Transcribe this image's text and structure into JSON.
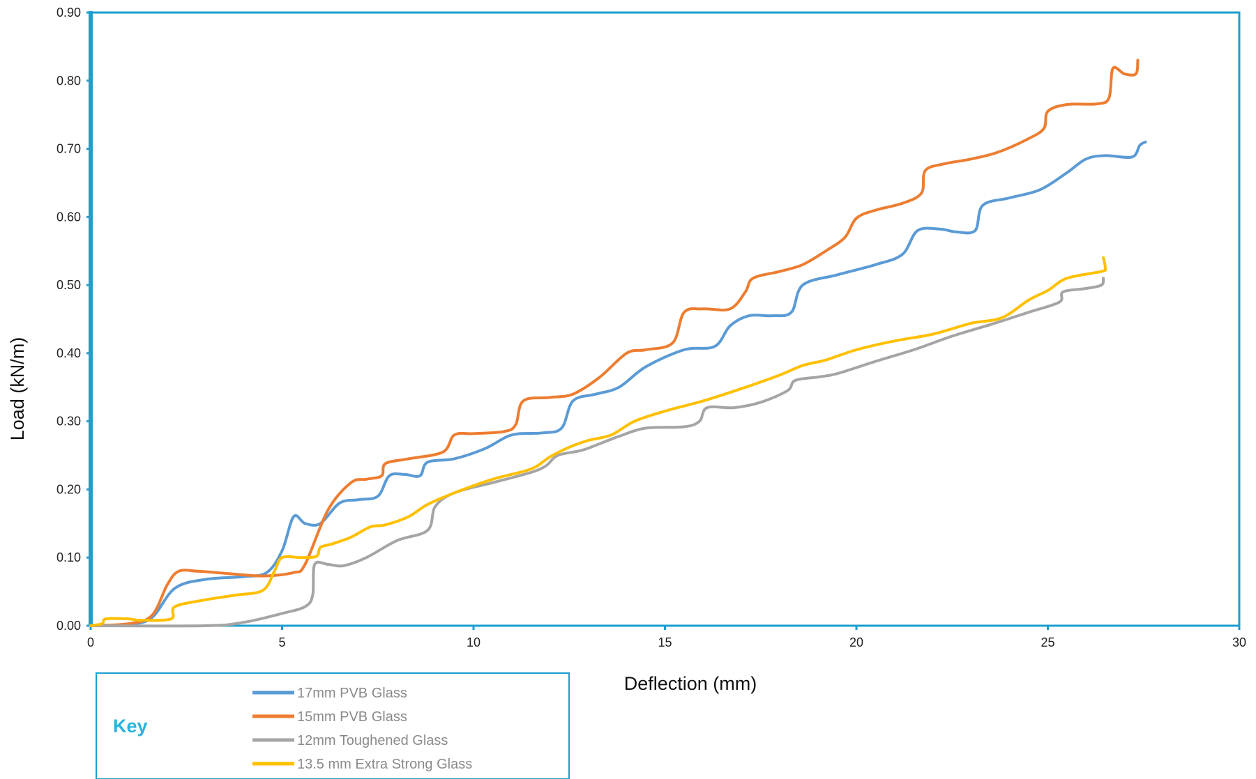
{
  "chart_data": {
    "type": "line",
    "xlabel": "Deflection (mm)",
    "ylabel": "Load (kN/m)",
    "xlim": [
      0,
      30
    ],
    "ylim": [
      0,
      0.9
    ],
    "x_ticks": [
      "0",
      "5",
      "10",
      "15",
      "20",
      "25",
      "30"
    ],
    "y_ticks": [
      "0.00",
      "0.10",
      "0.20",
      "0.30",
      "0.40",
      "0.50",
      "0.60",
      "0.70",
      "0.80",
      "0.90"
    ],
    "grid": false,
    "legend_title": "Key",
    "legend_position": "bottom-left",
    "colors": {
      "frame": "#1a9fcf",
      "legend_title": "#29b3dd"
    },
    "series": [
      {
        "name": "17mm PVB Glass",
        "color": "#5b9bd5",
        "points": [
          [
            0,
            0
          ],
          [
            1,
            0.002
          ],
          [
            1.6,
            0.012
          ],
          [
            2.2,
            0.055
          ],
          [
            3,
            0.068
          ],
          [
            4,
            0.072
          ],
          [
            4.6,
            0.078
          ],
          [
            5,
            0.11
          ],
          [
            5.3,
            0.16
          ],
          [
            5.6,
            0.15
          ],
          [
            6,
            0.15
          ],
          [
            6.5,
            0.18
          ],
          [
            7,
            0.185
          ],
          [
            7.5,
            0.19
          ],
          [
            7.8,
            0.22
          ],
          [
            8.2,
            0.222
          ],
          [
            8.6,
            0.22
          ],
          [
            8.8,
            0.24
          ],
          [
            9.5,
            0.245
          ],
          [
            10.3,
            0.26
          ],
          [
            11,
            0.28
          ],
          [
            11.8,
            0.283
          ],
          [
            12.3,
            0.29
          ],
          [
            12.6,
            0.33
          ],
          [
            13.2,
            0.34
          ],
          [
            13.8,
            0.35
          ],
          [
            14.5,
            0.38
          ],
          [
            15.5,
            0.405
          ],
          [
            16.3,
            0.41
          ],
          [
            16.7,
            0.44
          ],
          [
            17.2,
            0.455
          ],
          [
            17.8,
            0.455
          ],
          [
            18.3,
            0.46
          ],
          [
            18.6,
            0.5
          ],
          [
            19.5,
            0.515
          ],
          [
            20.5,
            0.53
          ],
          [
            21.2,
            0.545
          ],
          [
            21.6,
            0.58
          ],
          [
            22.2,
            0.582
          ],
          [
            22.6,
            0.578
          ],
          [
            23.1,
            0.58
          ],
          [
            23.3,
            0.617
          ],
          [
            24,
            0.628
          ],
          [
            24.8,
            0.64
          ],
          [
            25.5,
            0.665
          ],
          [
            26,
            0.685
          ],
          [
            26.5,
            0.69
          ],
          [
            27.2,
            0.688
          ],
          [
            27.4,
            0.705
          ],
          [
            27.55,
            0.71
          ]
        ]
      },
      {
        "name": "15mm PVB Glass",
        "color": "#ed7d31",
        "points": [
          [
            0,
            0
          ],
          [
            1,
            0.003
          ],
          [
            1.6,
            0.015
          ],
          [
            2,
            0.06
          ],
          [
            2.3,
            0.08
          ],
          [
            2.8,
            0.08
          ],
          [
            3.5,
            0.077
          ],
          [
            4.5,
            0.073
          ],
          [
            5.3,
            0.078
          ],
          [
            5.6,
            0.09
          ],
          [
            6.2,
            0.17
          ],
          [
            6.8,
            0.21
          ],
          [
            7.2,
            0.215
          ],
          [
            7.6,
            0.22
          ],
          [
            7.7,
            0.238
          ],
          [
            8.3,
            0.245
          ],
          [
            9.2,
            0.255
          ],
          [
            9.5,
            0.28
          ],
          [
            10,
            0.282
          ],
          [
            10.8,
            0.285
          ],
          [
            11.1,
            0.295
          ],
          [
            11.3,
            0.33
          ],
          [
            12,
            0.335
          ],
          [
            12.6,
            0.34
          ],
          [
            13.3,
            0.365
          ],
          [
            14,
            0.4
          ],
          [
            14.5,
            0.405
          ],
          [
            15.2,
            0.415
          ],
          [
            15.5,
            0.46
          ],
          [
            16,
            0.465
          ],
          [
            16.7,
            0.465
          ],
          [
            17.1,
            0.49
          ],
          [
            17.3,
            0.51
          ],
          [
            18,
            0.52
          ],
          [
            18.6,
            0.53
          ],
          [
            19.2,
            0.55
          ],
          [
            19.7,
            0.57
          ],
          [
            20,
            0.598
          ],
          [
            20.5,
            0.61
          ],
          [
            21.2,
            0.62
          ],
          [
            21.7,
            0.635
          ],
          [
            21.8,
            0.668
          ],
          [
            22.3,
            0.678
          ],
          [
            23,
            0.685
          ],
          [
            23.7,
            0.695
          ],
          [
            24.5,
            0.715
          ],
          [
            24.9,
            0.73
          ],
          [
            25,
            0.755
          ],
          [
            25.5,
            0.765
          ],
          [
            26.3,
            0.766
          ],
          [
            26.6,
            0.775
          ],
          [
            26.7,
            0.818
          ],
          [
            27,
            0.81
          ],
          [
            27.3,
            0.81
          ],
          [
            27.35,
            0.83
          ]
        ]
      },
      {
        "name": "12mm Toughened Glass",
        "color": "#a5a5a5",
        "points": [
          [
            0,
            0
          ],
          [
            3,
            0
          ],
          [
            4,
            0.005
          ],
          [
            5,
            0.018
          ],
          [
            5.6,
            0.028
          ],
          [
            5.8,
            0.045
          ],
          [
            5.85,
            0.09
          ],
          [
            6.2,
            0.09
          ],
          [
            6.6,
            0.088
          ],
          [
            7.2,
            0.1
          ],
          [
            8,
            0.125
          ],
          [
            8.8,
            0.14
          ],
          [
            9,
            0.175
          ],
          [
            9.5,
            0.195
          ],
          [
            10.5,
            0.21
          ],
          [
            11.5,
            0.225
          ],
          [
            11.9,
            0.235
          ],
          [
            12.2,
            0.25
          ],
          [
            12.8,
            0.257
          ],
          [
            13.2,
            0.265
          ],
          [
            13.8,
            0.278
          ],
          [
            14.5,
            0.29
          ],
          [
            15.5,
            0.292
          ],
          [
            15.9,
            0.3
          ],
          [
            16.1,
            0.32
          ],
          [
            16.8,
            0.32
          ],
          [
            17.5,
            0.328
          ],
          [
            18.2,
            0.345
          ],
          [
            18.4,
            0.36
          ],
          [
            19,
            0.365
          ],
          [
            19.5,
            0.37
          ],
          [
            20.5,
            0.388
          ],
          [
            21.5,
            0.405
          ],
          [
            22.5,
            0.425
          ],
          [
            23.5,
            0.442
          ],
          [
            24.5,
            0.46
          ],
          [
            25.3,
            0.475
          ],
          [
            25.4,
            0.49
          ],
          [
            26,
            0.495
          ],
          [
            26.4,
            0.5
          ],
          [
            26.45,
            0.51
          ]
        ]
      },
      {
        "name": "13.5 mm Extra Strong Glass",
        "color": "#ffc000",
        "points": [
          [
            0,
            0
          ],
          [
            0.3,
            0.003
          ],
          [
            0.4,
            0.01
          ],
          [
            1,
            0.01
          ],
          [
            1.3,
            0.008
          ],
          [
            2.1,
            0.01
          ],
          [
            2.2,
            0.028
          ],
          [
            3,
            0.038
          ],
          [
            3.8,
            0.045
          ],
          [
            4.5,
            0.052
          ],
          [
            4.8,
            0.08
          ],
          [
            5,
            0.1
          ],
          [
            5.5,
            0.1
          ],
          [
            5.9,
            0.102
          ],
          [
            6,
            0.115
          ],
          [
            6.3,
            0.12
          ],
          [
            6.8,
            0.13
          ],
          [
            7.3,
            0.145
          ],
          [
            7.7,
            0.148
          ],
          [
            8.3,
            0.16
          ],
          [
            8.8,
            0.178
          ],
          [
            9.5,
            0.195
          ],
          [
            10.5,
            0.215
          ],
          [
            11.5,
            0.23
          ],
          [
            12,
            0.248
          ],
          [
            12.5,
            0.262
          ],
          [
            13,
            0.272
          ],
          [
            13.6,
            0.28
          ],
          [
            14.2,
            0.3
          ],
          [
            15,
            0.315
          ],
          [
            16,
            0.33
          ],
          [
            17,
            0.348
          ],
          [
            18,
            0.368
          ],
          [
            18.6,
            0.382
          ],
          [
            19.2,
            0.39
          ],
          [
            20,
            0.405
          ],
          [
            21,
            0.418
          ],
          [
            22,
            0.428
          ],
          [
            23,
            0.444
          ],
          [
            23.8,
            0.452
          ],
          [
            24.5,
            0.478
          ],
          [
            25,
            0.492
          ],
          [
            25.5,
            0.51
          ],
          [
            26.4,
            0.52
          ],
          [
            26.5,
            0.525
          ],
          [
            26.45,
            0.54
          ]
        ]
      }
    ]
  }
}
